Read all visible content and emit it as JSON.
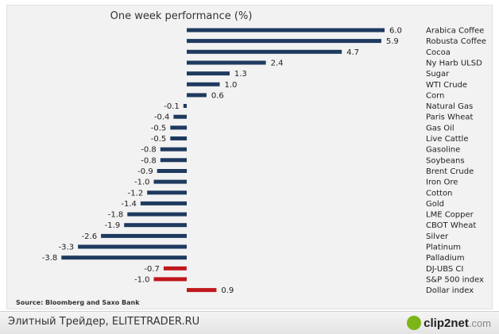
{
  "chart_data": {
    "type": "bar",
    "orientation": "horizontal",
    "title": "One week performance (%)",
    "source": "Source: Bloomberg and Saxo Bank",
    "categories": [
      "Arabica Coffee",
      "Robusta Coffee",
      "Cocoa",
      "Ny Harb ULSD",
      "Sugar",
      "WTI Crude",
      "Corn",
      "Natural Gas",
      "Paris Wheat",
      "Gas Oil",
      "Live Cattle",
      "Gasoline",
      "Soybeans",
      "Brent Crude",
      "Iron Ore",
      "Cotton",
      "Gold",
      "LME Copper",
      "CBOT Wheat",
      "Silver",
      "Platinum",
      "Palladium",
      "DJ-UBS CI",
      "S&P 500 index",
      "Dollar index"
    ],
    "values": [
      6.0,
      5.9,
      4.7,
      2.4,
      1.3,
      1.0,
      0.6,
      -0.1,
      -0.4,
      -0.5,
      -0.5,
      -0.8,
      -0.8,
      -0.9,
      -1.0,
      -1.2,
      -1.4,
      -1.8,
      -1.9,
      -2.6,
      -3.3,
      -3.8,
      -0.7,
      -1.0,
      0.9
    ],
    "value_labels": [
      "6.0",
      "5.9",
      "4.7",
      "2.4",
      "1.3",
      "1.0",
      "0.6",
      "-0.1",
      "-0.4",
      "-0.5",
      "-0.5",
      "-0.8",
      "-0.8",
      "-0.9",
      "-1.0",
      "-1.2",
      "-1.4",
      "-1.8",
      "-1.9",
      "-2.6",
      "-3.3",
      "-3.8",
      "-0.7",
      "-1.0",
      "0.9"
    ],
    "bar_groups": [
      "commodity",
      "commodity",
      "commodity",
      "commodity",
      "commodity",
      "commodity",
      "commodity",
      "commodity",
      "commodity",
      "commodity",
      "commodity",
      "commodity",
      "commodity",
      "commodity",
      "commodity",
      "commodity",
      "commodity",
      "commodity",
      "commodity",
      "commodity",
      "commodity",
      "commodity",
      "benchmark",
      "benchmark",
      "benchmark"
    ],
    "colors": {
      "commodity": "#1f3a5f",
      "benchmark": "#c0171c"
    },
    "xlim": [
      -3.8,
      6.0
    ],
    "grid": false,
    "legend": "none"
  },
  "footer": {
    "text": "Элитный Трейдер, ELITETRADER.RU",
    "logo_brand": "clip2net",
    "logo_domain": ".com"
  }
}
